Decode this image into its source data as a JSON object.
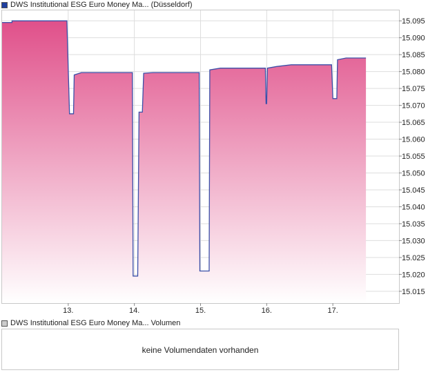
{
  "price_legend": {
    "label": "DWS Institutional ESG Euro Money Ma... (Düsseldorf)",
    "color": "#1f3f9f"
  },
  "volume_legend": {
    "label": "DWS Institutional ESG Euro Money Ma... Volumen",
    "color": "#cccccc"
  },
  "volume_panel": {
    "message": "keine Volumendaten vorhanden"
  },
  "colors": {
    "line": "#3a4fa8",
    "fill_top": "#e0508a",
    "fill_bottom": "#ffffff",
    "grid": "#dddddd",
    "frame": "#c8c8c8"
  },
  "chart_data": {
    "type": "area",
    "series": [
      {
        "name": "DWS Institutional ESG Euro Money Ma... (Düsseldorf)",
        "points": [
          [
            12.0,
            15.0945
          ],
          [
            12.15,
            15.0945
          ],
          [
            12.15,
            15.095
          ],
          [
            12.98,
            15.095
          ],
          [
            13.02,
            15.0675
          ],
          [
            13.08,
            15.0675
          ],
          [
            13.09,
            15.079
          ],
          [
            13.2,
            15.0797
          ],
          [
            13.97,
            15.0797
          ],
          [
            13.98,
            15.0195
          ],
          [
            14.05,
            15.0195
          ],
          [
            14.07,
            15.068
          ],
          [
            14.12,
            15.068
          ],
          [
            14.14,
            15.0795
          ],
          [
            14.28,
            15.0797
          ],
          [
            14.98,
            15.0797
          ],
          [
            14.99,
            15.021
          ],
          [
            15.13,
            15.021
          ],
          [
            15.14,
            15.0805
          ],
          [
            15.3,
            15.081
          ],
          [
            15.98,
            15.081
          ],
          [
            15.99,
            15.0705
          ],
          [
            16.0,
            15.0705
          ],
          [
            16.01,
            15.081
          ],
          [
            16.15,
            15.0815
          ],
          [
            16.37,
            15.082
          ],
          [
            16.98,
            15.082
          ],
          [
            17.0,
            15.072
          ],
          [
            17.06,
            15.072
          ],
          [
            17.07,
            15.0835
          ],
          [
            17.2,
            15.084
          ],
          [
            17.5,
            15.084
          ]
        ]
      }
    ],
    "x_ticks": [
      13,
      14,
      15,
      16,
      17
    ],
    "x_tick_labels": [
      "13.",
      "14.",
      "15.",
      "16.",
      "17."
    ],
    "y_ticks": [
      15.015,
      15.02,
      15.025,
      15.03,
      15.035,
      15.04,
      15.045,
      15.05,
      15.055,
      15.06,
      15.065,
      15.07,
      15.075,
      15.08,
      15.085,
      15.09,
      15.095
    ],
    "y_tick_labels": [
      "15.015",
      "15.020",
      "15.025",
      "15.030",
      "15.035",
      "15.040",
      "15.045",
      "15.050",
      "15.055",
      "15.060",
      "15.065",
      "15.070",
      "15.075",
      "15.080",
      "15.085",
      "15.090",
      "15.095"
    ],
    "xlim": [
      12.0,
      18.0
    ],
    "ylim": [
      15.0115,
      15.0981
    ],
    "grid": true,
    "y_axis_position": "right"
  }
}
